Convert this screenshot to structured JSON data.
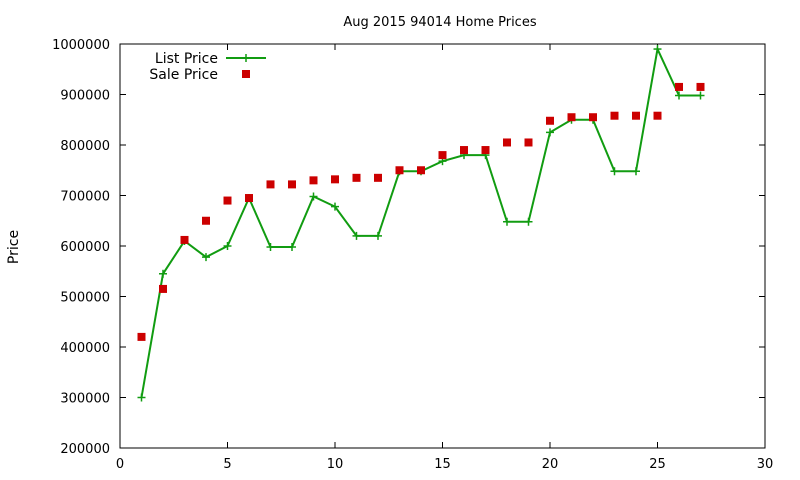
{
  "chart_data": {
    "type": "line",
    "title": "Aug 2015 94014 Home Prices",
    "xlabel": "",
    "ylabel": "Price",
    "xlim": [
      0,
      30
    ],
    "ylim": [
      200000,
      1000000
    ],
    "xticks": [
      "0",
      "5",
      "10",
      "15",
      "20",
      "25",
      "30"
    ],
    "yticks": [
      "200000",
      "300000",
      "400000",
      "500000",
      "600000",
      "700000",
      "800000",
      "900000",
      "1000000"
    ],
    "grid": false,
    "legend_position": "top-left",
    "series": [
      {
        "name": "List Price",
        "style": "line-plus",
        "color": "#119c11",
        "x": [
          1,
          2,
          3,
          4,
          5,
          6,
          7,
          8,
          9,
          10,
          11,
          12,
          13,
          14,
          15,
          16,
          17,
          18,
          19,
          20,
          21,
          22,
          23,
          24,
          25,
          26,
          27
        ],
        "y": [
          300000,
          545000,
          610000,
          578000,
          600000,
          695000,
          598000,
          598000,
          698000,
          678000,
          620000,
          620000,
          748000,
          748000,
          768000,
          780000,
          780000,
          648000,
          648000,
          825000,
          850000,
          850000,
          748000,
          748000,
          990000,
          898000,
          898000
        ]
      },
      {
        "name": "Sale Price",
        "style": "square",
        "color": "#cc0000",
        "x": [
          1,
          2,
          3,
          4,
          5,
          6,
          7,
          8,
          9,
          10,
          11,
          12,
          13,
          14,
          15,
          16,
          17,
          18,
          19,
          20,
          21,
          22,
          23,
          24,
          25,
          26,
          27
        ],
        "y": [
          420000,
          515000,
          612000,
          650000,
          690000,
          695000,
          722000,
          722000,
          730000,
          732000,
          735000,
          735000,
          750000,
          750000,
          780000,
          790000,
          790000,
          805000,
          805000,
          848000,
          855000,
          855000,
          858000,
          858000,
          858000,
          915000,
          915000
        ]
      }
    ]
  }
}
